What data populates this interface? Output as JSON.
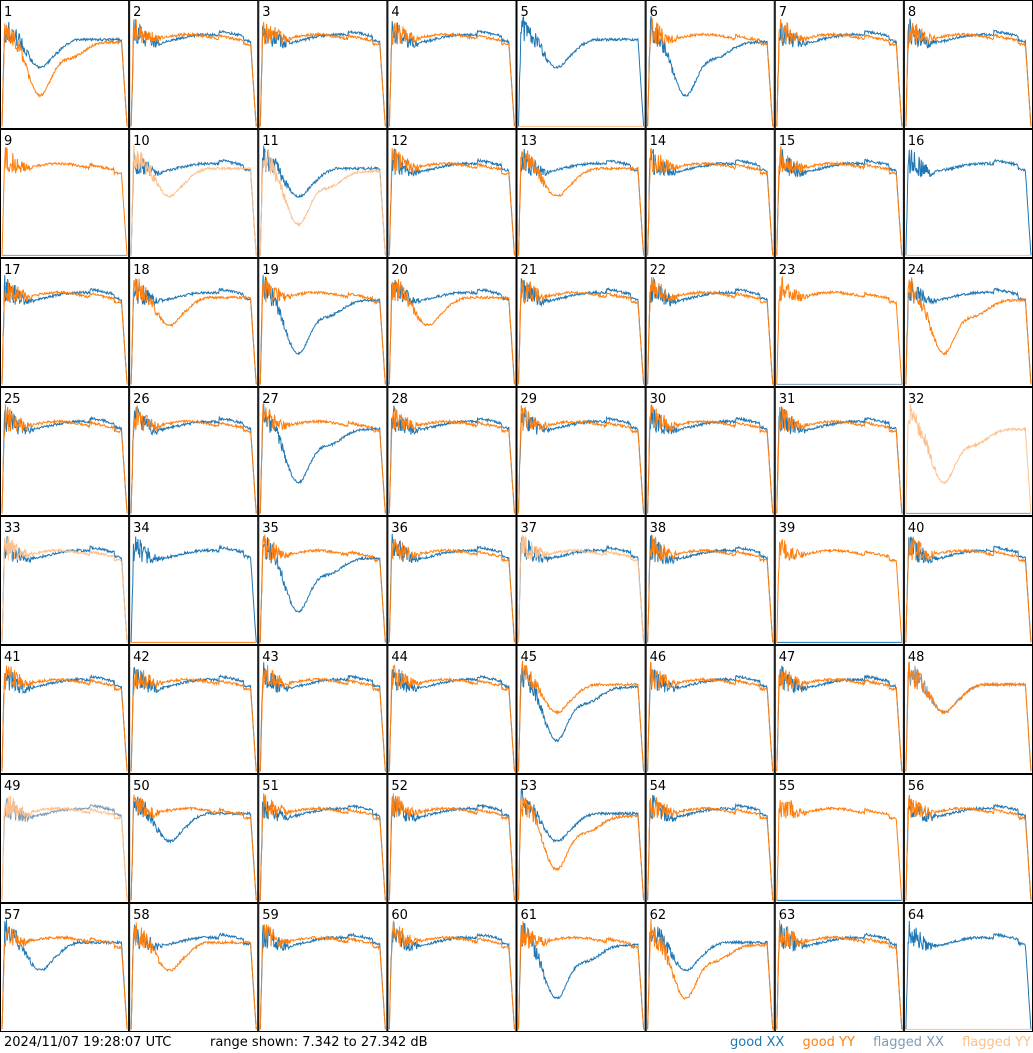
{
  "footer": {
    "timestamp": "2024/11/07 19:28:07 UTC",
    "range_text": "range shown: 7.342 to 27.342 dB"
  },
  "legend": [
    {
      "key": "good_xx",
      "label": "good XX",
      "color": "#1f77b4"
    },
    {
      "key": "good_yy",
      "label": "good YY",
      "color": "#ff7f0e"
    },
    {
      "key": "flagged_xx",
      "label": "flagged XX",
      "color": "#7f9bb4"
    },
    {
      "key": "flagged_yy",
      "label": "flagged YY",
      "color": "#fdc08d"
    }
  ],
  "chart_data": {
    "type": "line",
    "layout": {
      "rows": 8,
      "cols": 8
    },
    "ylim": [
      7.342,
      27.342
    ],
    "units": "dB",
    "series_names": [
      "XX",
      "YY"
    ],
    "tiles": [
      {
        "label": "1",
        "xx": {
          "shape": "dip_mid",
          "flagged": false
        },
        "yy": {
          "shape": "dip_deep",
          "flagged": false
        }
      },
      {
        "label": "2",
        "xx": {
          "shape": "flat",
          "flagged": false
        },
        "yy": {
          "shape": "flat",
          "flagged": false
        }
      },
      {
        "label": "3",
        "xx": {
          "shape": "flat",
          "flagged": false
        },
        "yy": {
          "shape": "flat",
          "flagged": false
        }
      },
      {
        "label": "4",
        "xx": {
          "shape": "flat",
          "flagged": false
        },
        "yy": {
          "shape": "flat",
          "flagged": false
        }
      },
      {
        "label": "5",
        "xx": {
          "shape": "dip_mid",
          "flagged": false
        },
        "yy": {
          "shape": "dead",
          "flagged": true
        }
      },
      {
        "label": "6",
        "xx": {
          "shape": "dip_deep",
          "flagged": false
        },
        "yy": {
          "shape": "flat",
          "flagged": false
        }
      },
      {
        "label": "7",
        "xx": {
          "shape": "flat",
          "flagged": false
        },
        "yy": {
          "shape": "flat",
          "flagged": false
        }
      },
      {
        "label": "8",
        "xx": {
          "shape": "flat",
          "flagged": false
        },
        "yy": {
          "shape": "flat",
          "flagged": false
        }
      },
      {
        "label": "9",
        "xx": {
          "shape": "dead",
          "flagged": true
        },
        "yy": {
          "shape": "flat",
          "flagged": false
        }
      },
      {
        "label": "10",
        "xx": {
          "shape": "flat",
          "flagged": false
        },
        "yy": {
          "shape": "dip_mid",
          "flagged": true
        }
      },
      {
        "label": "11",
        "xx": {
          "shape": "dip_mid",
          "flagged": false
        },
        "yy": {
          "shape": "dip_deep",
          "flagged": true
        }
      },
      {
        "label": "12",
        "xx": {
          "shape": "flat",
          "flagged": false
        },
        "yy": {
          "shape": "flat",
          "flagged": false
        }
      },
      {
        "label": "13",
        "xx": {
          "shape": "flat",
          "flagged": false
        },
        "yy": {
          "shape": "dip_mid",
          "flagged": false
        }
      },
      {
        "label": "14",
        "xx": {
          "shape": "flat",
          "flagged": false
        },
        "yy": {
          "shape": "flat",
          "flagged": false
        }
      },
      {
        "label": "15",
        "xx": {
          "shape": "flat",
          "flagged": false
        },
        "yy": {
          "shape": "flat",
          "flagged": false
        }
      },
      {
        "label": "16",
        "xx": {
          "shape": "flat",
          "flagged": false
        },
        "yy": {
          "shape": "dead",
          "flagged": true
        }
      },
      {
        "label": "17",
        "xx": {
          "shape": "flat",
          "flagged": false
        },
        "yy": {
          "shape": "flat",
          "flagged": false
        }
      },
      {
        "label": "18",
        "xx": {
          "shape": "flat",
          "flagged": false
        },
        "yy": {
          "shape": "dip_mid",
          "flagged": false
        }
      },
      {
        "label": "19",
        "xx": {
          "shape": "dip_deep",
          "flagged": false
        },
        "yy": {
          "shape": "flat",
          "flagged": false
        }
      },
      {
        "label": "20",
        "xx": {
          "shape": "flat",
          "flagged": false
        },
        "yy": {
          "shape": "dip_mid",
          "flagged": false
        }
      },
      {
        "label": "21",
        "xx": {
          "shape": "flat",
          "flagged": false
        },
        "yy": {
          "shape": "flat",
          "flagged": false
        }
      },
      {
        "label": "22",
        "xx": {
          "shape": "flat",
          "flagged": false
        },
        "yy": {
          "shape": "flat",
          "flagged": false
        }
      },
      {
        "label": "23",
        "xx": {
          "shape": "dead",
          "flagged": true
        },
        "yy": {
          "shape": "flat",
          "flagged": false
        }
      },
      {
        "label": "24",
        "xx": {
          "shape": "flat",
          "flagged": false
        },
        "yy": {
          "shape": "dip_deep",
          "flagged": false
        }
      },
      {
        "label": "25",
        "xx": {
          "shape": "flat",
          "flagged": false
        },
        "yy": {
          "shape": "flat",
          "flagged": false
        }
      },
      {
        "label": "26",
        "xx": {
          "shape": "flat",
          "flagged": false
        },
        "yy": {
          "shape": "flat",
          "flagged": false
        }
      },
      {
        "label": "27",
        "xx": {
          "shape": "dip_deep",
          "flagged": false
        },
        "yy": {
          "shape": "flat",
          "flagged": false
        }
      },
      {
        "label": "28",
        "xx": {
          "shape": "flat",
          "flagged": false
        },
        "yy": {
          "shape": "flat",
          "flagged": false
        }
      },
      {
        "label": "29",
        "xx": {
          "shape": "flat",
          "flagged": false
        },
        "yy": {
          "shape": "flat",
          "flagged": false
        }
      },
      {
        "label": "30",
        "xx": {
          "shape": "flat",
          "flagged": false
        },
        "yy": {
          "shape": "flat",
          "flagged": false
        }
      },
      {
        "label": "31",
        "xx": {
          "shape": "flat",
          "flagged": false
        },
        "yy": {
          "shape": "flat",
          "flagged": false
        }
      },
      {
        "label": "32",
        "xx": {
          "shape": "dead",
          "flagged": true
        },
        "yy": {
          "shape": "dip_deep",
          "flagged": true
        }
      },
      {
        "label": "33",
        "xx": {
          "shape": "flat",
          "flagged": false
        },
        "yy": {
          "shape": "flat",
          "flagged": true
        }
      },
      {
        "label": "34",
        "xx": {
          "shape": "flat",
          "flagged": false
        },
        "yy": {
          "shape": "dead",
          "flagged": false
        }
      },
      {
        "label": "35",
        "xx": {
          "shape": "dip_deep",
          "flagged": false
        },
        "yy": {
          "shape": "flat",
          "flagged": false
        }
      },
      {
        "label": "36",
        "xx": {
          "shape": "flat",
          "flagged": false
        },
        "yy": {
          "shape": "flat",
          "flagged": false
        }
      },
      {
        "label": "37",
        "xx": {
          "shape": "flat",
          "flagged": false
        },
        "yy": {
          "shape": "flat",
          "flagged": true
        }
      },
      {
        "label": "38",
        "xx": {
          "shape": "flat",
          "flagged": false
        },
        "yy": {
          "shape": "flat",
          "flagged": false
        }
      },
      {
        "label": "39",
        "xx": {
          "shape": "dead",
          "flagged": false
        },
        "yy": {
          "shape": "flat",
          "flagged": false
        }
      },
      {
        "label": "40",
        "xx": {
          "shape": "flat",
          "flagged": false
        },
        "yy": {
          "shape": "flat",
          "flagged": false
        }
      },
      {
        "label": "41",
        "xx": {
          "shape": "flat",
          "flagged": false
        },
        "yy": {
          "shape": "flat",
          "flagged": false
        }
      },
      {
        "label": "42",
        "xx": {
          "shape": "flat",
          "flagged": false
        },
        "yy": {
          "shape": "flat",
          "flagged": false
        }
      },
      {
        "label": "43",
        "xx": {
          "shape": "flat",
          "flagged": false
        },
        "yy": {
          "shape": "flat",
          "flagged": false
        }
      },
      {
        "label": "44",
        "xx": {
          "shape": "flat",
          "flagged": false
        },
        "yy": {
          "shape": "flat",
          "flagged": false
        }
      },
      {
        "label": "45",
        "xx": {
          "shape": "dip_deep",
          "flagged": false
        },
        "yy": {
          "shape": "dip_mid",
          "flagged": false
        }
      },
      {
        "label": "46",
        "xx": {
          "shape": "flat",
          "flagged": false
        },
        "yy": {
          "shape": "flat",
          "flagged": false
        }
      },
      {
        "label": "47",
        "xx": {
          "shape": "flat",
          "flagged": false
        },
        "yy": {
          "shape": "flat",
          "flagged": false
        }
      },
      {
        "label": "48",
        "xx": {
          "shape": "dip_mid",
          "flagged": true
        },
        "yy": {
          "shape": "dip_mid",
          "flagged": false
        }
      },
      {
        "label": "49",
        "xx": {
          "shape": "flat",
          "flagged": true
        },
        "yy": {
          "shape": "flat",
          "flagged": true
        }
      },
      {
        "label": "50",
        "xx": {
          "shape": "dip_mid",
          "flagged": false
        },
        "yy": {
          "shape": "flat",
          "flagged": false
        }
      },
      {
        "label": "51",
        "xx": {
          "shape": "flat",
          "flagged": false
        },
        "yy": {
          "shape": "flat",
          "flagged": false
        }
      },
      {
        "label": "52",
        "xx": {
          "shape": "flat",
          "flagged": false
        },
        "yy": {
          "shape": "flat",
          "flagged": false
        }
      },
      {
        "label": "53",
        "xx": {
          "shape": "dip_mid",
          "flagged": false
        },
        "yy": {
          "shape": "dip_deep",
          "flagged": false
        }
      },
      {
        "label": "54",
        "xx": {
          "shape": "flat",
          "flagged": false
        },
        "yy": {
          "shape": "flat",
          "flagged": false
        }
      },
      {
        "label": "55",
        "xx": {
          "shape": "dead",
          "flagged": false
        },
        "yy": {
          "shape": "flat",
          "flagged": false
        }
      },
      {
        "label": "56",
        "xx": {
          "shape": "flat",
          "flagged": false
        },
        "yy": {
          "shape": "flat",
          "flagged": false
        }
      },
      {
        "label": "57",
        "xx": {
          "shape": "dip_mid",
          "flagged": false
        },
        "yy": {
          "shape": "flat",
          "flagged": false
        }
      },
      {
        "label": "58",
        "xx": {
          "shape": "flat",
          "flagged": false
        },
        "yy": {
          "shape": "dip_mid",
          "flagged": false
        }
      },
      {
        "label": "59",
        "xx": {
          "shape": "flat",
          "flagged": false
        },
        "yy": {
          "shape": "flat",
          "flagged": false
        }
      },
      {
        "label": "60",
        "xx": {
          "shape": "flat",
          "flagged": false
        },
        "yy": {
          "shape": "flat",
          "flagged": false
        }
      },
      {
        "label": "61",
        "xx": {
          "shape": "dip_deep",
          "flagged": false
        },
        "yy": {
          "shape": "flat",
          "flagged": false
        }
      },
      {
        "label": "62",
        "xx": {
          "shape": "dip_mid",
          "flagged": false
        },
        "yy": {
          "shape": "dip_deep",
          "flagged": false
        }
      },
      {
        "label": "63",
        "xx": {
          "shape": "flat",
          "flagged": false
        },
        "yy": {
          "shape": "flat",
          "flagged": false
        }
      },
      {
        "label": "64",
        "xx": {
          "shape": "flat",
          "flagged": false
        },
        "yy": {
          "shape": "dead",
          "flagged": true
        }
      }
    ]
  }
}
